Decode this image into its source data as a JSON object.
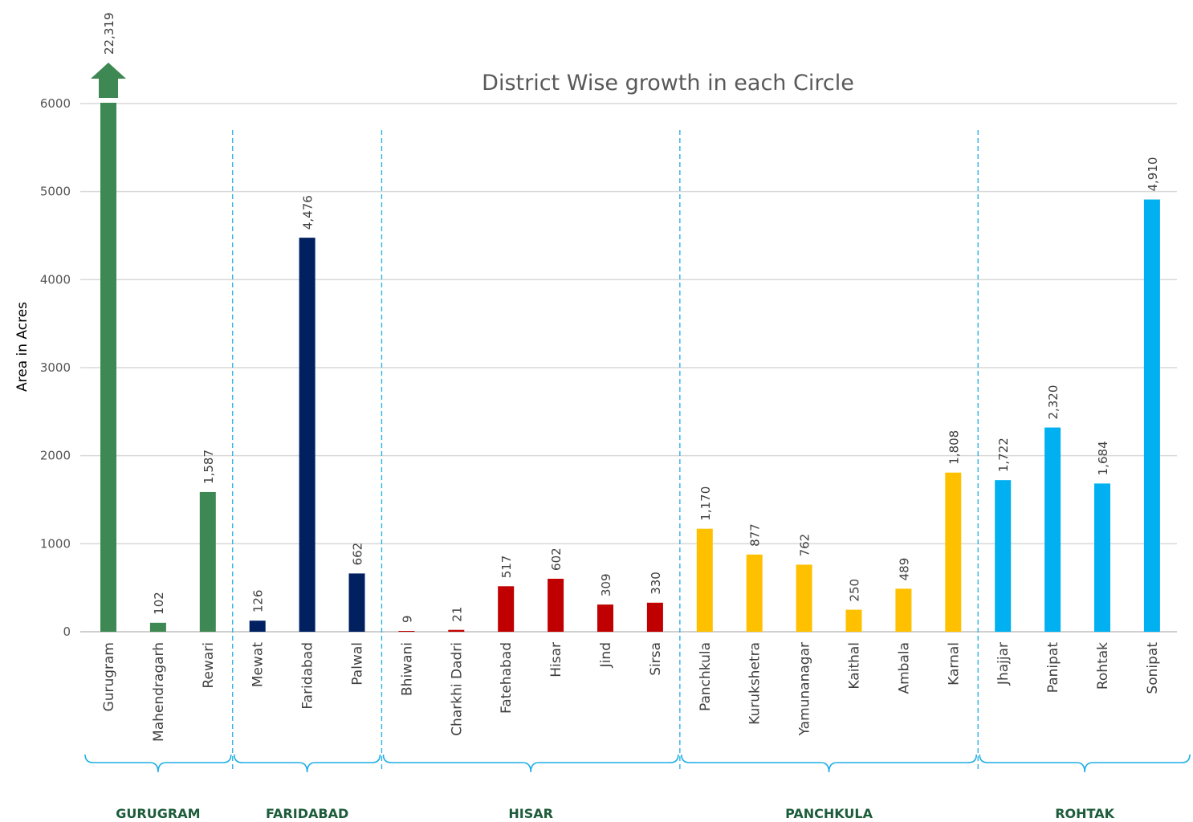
{
  "chart_data": {
    "type": "bar",
    "title": "District Wise growth in each Circle",
    "ylabel": "Area in Acres",
    "xlabel": "",
    "ylim": [
      0,
      6000
    ],
    "yticks": [
      0,
      1000,
      2000,
      3000,
      4000,
      5000,
      6000
    ],
    "grid": true,
    "categories": [
      "Gurugram",
      "Mahendragarh",
      "Rewari",
      "Mewat",
      "Faridabad",
      "Palwal",
      "Bhiwani",
      "Charkhi Dadri",
      "Fatehabad",
      "Hisar",
      "Jind",
      "Sirsa",
      "Panchkula",
      "Kurukshetra",
      "Yamunanagar",
      "Kaithal",
      "Ambala",
      "Karnal",
      "Jhajjar",
      "Panipat",
      "Rohtak",
      "Sonipat"
    ],
    "values": [
      22319,
      102,
      1587,
      126,
      4476,
      662,
      9,
      21,
      517,
      602,
      309,
      330,
      1170,
      877,
      762,
      250,
      489,
      1808,
      1722,
      2320,
      1684,
      4910
    ],
    "value_labels": [
      "22,319",
      "102",
      "1,587",
      "126",
      "4,476",
      "662",
      "9",
      "21",
      "517",
      "602",
      "309",
      "330",
      "1,170",
      "877",
      "762",
      "250",
      "489",
      "1,808",
      "1,722",
      "2,320",
      "1,684",
      "4,910"
    ],
    "groups": [
      {
        "name": "GURUGRAM",
        "count": 3,
        "color": "#3e8853"
      },
      {
        "name": "FARIDABAD",
        "count": 3,
        "color": "#002060"
      },
      {
        "name": "HISAR",
        "count": 6,
        "color": "#c00000"
      },
      {
        "name": "PANCHKULA",
        "count": 6,
        "color": "#ffc000"
      },
      {
        "name": "ROHTAK",
        "count": 4,
        "color": "#00b0f0"
      }
    ],
    "overflow_arrow_color": "#3e8853",
    "divider_color": "#1eaee6",
    "brace_color": "#1eaee6"
  }
}
